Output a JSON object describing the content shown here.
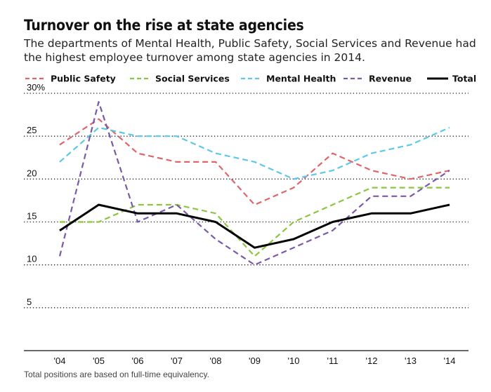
{
  "title": "Turnover on the rise at state agencies",
  "subtitle": "The departments of Mental Health, Public Safety, Social Services and Revenue had the highest employee turnover among state agencies in 2014.",
  "footnote": "Total positions are based on full-time equivalency.",
  "chart_data": {
    "type": "line",
    "title": "Turnover on the rise at state agencies",
    "xlabel": "",
    "ylabel": "",
    "categories": [
      "'04",
      "'05",
      "'06",
      "'07",
      "'08",
      "'09",
      "'10",
      "'11",
      "'12",
      "'13",
      "'14"
    ],
    "yticks": [
      5,
      10,
      15,
      20,
      25,
      30
    ],
    "ytick_labels": [
      "5",
      "10",
      "15",
      "20",
      "25",
      "30%"
    ],
    "ylim": [
      0,
      30
    ],
    "grid": "horizontal dotted",
    "legend_position": "top",
    "series": [
      {
        "name": "Public Safety",
        "color": "#e06468",
        "style": "dashed",
        "values": [
          24,
          27,
          23,
          22,
          22,
          17,
          19,
          23,
          21,
          20,
          21
        ]
      },
      {
        "name": "Social Services",
        "color": "#8cc63f",
        "style": "dashed",
        "values": [
          15,
          15,
          17,
          17,
          16,
          11,
          15,
          17,
          19,
          19,
          19
        ]
      },
      {
        "name": "Mental Health",
        "color": "#5bc8e8",
        "style": "dashed",
        "values": [
          22,
          26,
          25,
          25,
          23,
          22,
          20,
          21,
          23,
          24,
          26
        ]
      },
      {
        "name": "Revenue",
        "color": "#7a5aa6",
        "style": "dashed",
        "values": [
          11,
          29,
          15,
          17,
          13,
          10,
          12,
          14,
          18,
          18,
          21
        ]
      },
      {
        "name": "Total",
        "color": "#000000",
        "style": "solid",
        "values": [
          14,
          17,
          16,
          16,
          15,
          12,
          13,
          15,
          16,
          16,
          17
        ]
      }
    ]
  }
}
